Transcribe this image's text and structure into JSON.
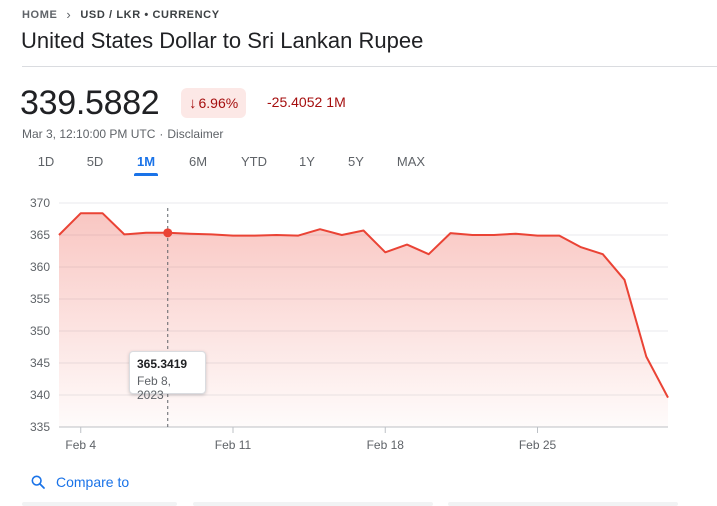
{
  "breadcrumb": {
    "home": "HOME",
    "current": "USD / LKR • CURRENCY"
  },
  "title": "United States Dollar to Sri Lankan Rupee",
  "quote": {
    "price": "339.5882",
    "change_percent": "6.96%",
    "change_arrow": "↓",
    "change_abs": "-25.4052",
    "change_period": "1M",
    "timestamp": "Mar 3, 12:10:00 PM UTC",
    "disclaimer": "Disclaimer"
  },
  "tabs": [
    {
      "label": "1D"
    },
    {
      "label": "5D"
    },
    {
      "label": "1M",
      "active": true
    },
    {
      "label": "6M"
    },
    {
      "label": "YTD"
    },
    {
      "label": "1Y"
    },
    {
      "label": "5Y"
    },
    {
      "label": "MAX"
    }
  ],
  "colors": {
    "line": "#ea4335",
    "negative": "#a50e0e",
    "accent": "#1a73e8"
  },
  "tooltip": {
    "value": "365.3419",
    "date": "Feb 8, 2023"
  },
  "compare": {
    "label": "Compare to",
    "icon": "search-icon"
  },
  "chart_data": {
    "type": "area",
    "ylim": [
      335,
      370
    ],
    "yticks": [
      370,
      365,
      360,
      355,
      350,
      345,
      340,
      335
    ],
    "xlim": [
      0,
      28
    ],
    "xticks": [
      {
        "label": "Feb 4",
        "x": 1
      },
      {
        "label": "Feb 11",
        "x": 8
      },
      {
        "label": "Feb 18",
        "x": 15
      },
      {
        "label": "Feb 25",
        "x": 22
      }
    ],
    "grid": true,
    "highlight_index": 5,
    "points": [
      [
        0,
        365.0
      ],
      [
        1,
        368.4
      ],
      [
        2,
        368.4
      ],
      [
        3,
        365.1
      ],
      [
        4,
        365.35
      ],
      [
        5,
        365.34
      ],
      [
        6,
        365.2
      ],
      [
        7,
        365.1
      ],
      [
        8,
        364.9
      ],
      [
        9,
        364.9
      ],
      [
        10,
        365.0
      ],
      [
        11,
        364.9
      ],
      [
        12,
        365.9
      ],
      [
        13,
        365.0
      ],
      [
        14,
        365.7
      ],
      [
        15,
        362.3
      ],
      [
        16,
        363.5
      ],
      [
        17,
        362.0
      ],
      [
        18,
        365.3
      ],
      [
        19,
        365.0
      ],
      [
        20,
        365.0
      ],
      [
        21,
        365.2
      ],
      [
        22,
        364.9
      ],
      [
        23,
        364.9
      ],
      [
        24,
        363.1
      ],
      [
        25,
        362.0
      ],
      [
        26,
        358.0
      ],
      [
        27,
        346.0
      ],
      [
        28,
        339.6
      ]
    ]
  }
}
